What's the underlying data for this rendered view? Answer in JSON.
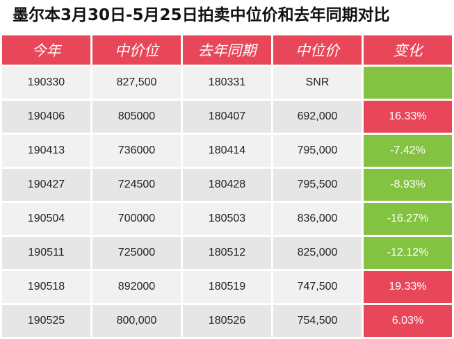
{
  "title": "墨尔本3月30日-5月25日拍卖中位价和去年同期对比",
  "headers": [
    "今年",
    "中价位",
    "去年同期",
    "中位价",
    "变化"
  ],
  "colors": {
    "header": "#e8475a",
    "up": "#e8475a",
    "down": "#83c341"
  },
  "rows": [
    {
      "this_year": "190330",
      "median_this": "827,500",
      "last_year": "180331",
      "median_last": "SNR",
      "change": "",
      "trend": "down"
    },
    {
      "this_year": "190406",
      "median_this": "805000",
      "last_year": "180407",
      "median_last": "692,000",
      "change": "16.33%",
      "trend": "up"
    },
    {
      "this_year": "190413",
      "median_this": "736000",
      "last_year": "180414",
      "median_last": "795,000",
      "change": "-7.42%",
      "trend": "down"
    },
    {
      "this_year": "190427",
      "median_this": "724500",
      "last_year": "180428",
      "median_last": "795,500",
      "change": "-8.93%",
      "trend": "down"
    },
    {
      "this_year": "190504",
      "median_this": "700000",
      "last_year": "180503",
      "median_last": "836,000",
      "change": "-16.27%",
      "trend": "down"
    },
    {
      "this_year": "190511",
      "median_this": "725000",
      "last_year": "180512",
      "median_last": "825,000",
      "change": "-12.12%",
      "trend": "down"
    },
    {
      "this_year": "190518",
      "median_this": "892000",
      "last_year": "180519",
      "median_last": "747,500",
      "change": "19.33%",
      "trend": "up"
    },
    {
      "this_year": "190525",
      "median_this": "800,000",
      "last_year": "180526",
      "median_last": "754,500",
      "change": "6.03%",
      "trend": "up"
    }
  ]
}
